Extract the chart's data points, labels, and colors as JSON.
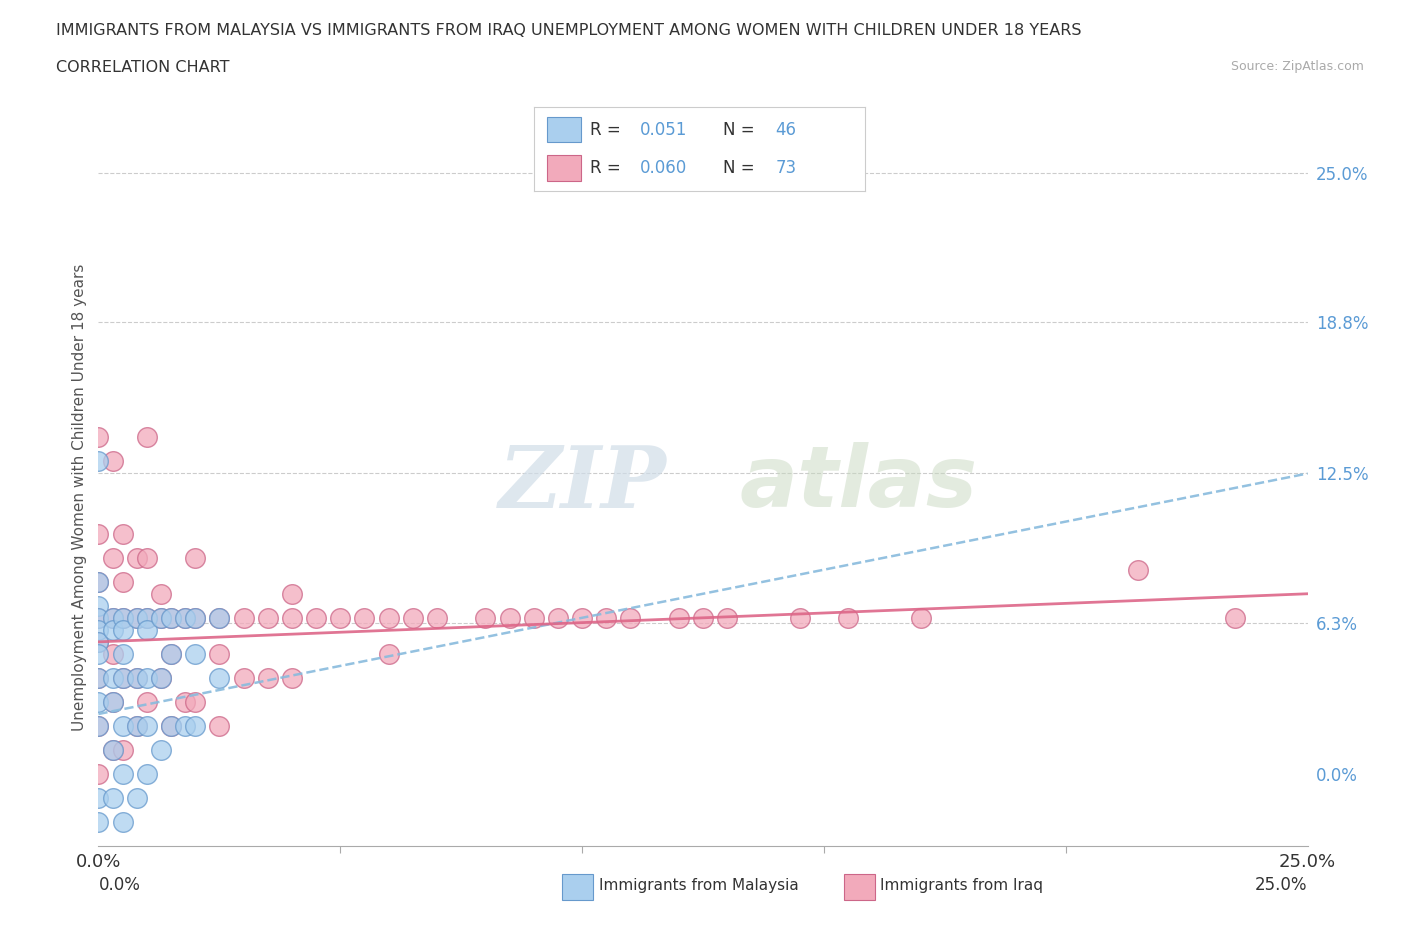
{
  "title_line1": "IMMIGRANTS FROM MALAYSIA VS IMMIGRANTS FROM IRAQ UNEMPLOYMENT AMONG WOMEN WITH CHILDREN UNDER 18 YEARS",
  "title_line2": "CORRELATION CHART",
  "source": "Source: ZipAtlas.com",
  "ylabel": "Unemployment Among Women with Children Under 18 years",
  "xlim": [
    0.0,
    0.25
  ],
  "ylim": [
    -0.03,
    0.26
  ],
  "xtick_vals": [
    0.0,
    0.25
  ],
  "xtick_labels": [
    "0.0%",
    "25.0%"
  ],
  "ytick_right_vals": [
    0.0,
    0.063,
    0.125,
    0.188,
    0.25
  ],
  "ytick_right_labels": [
    "0.0%",
    "6.3%",
    "12.5%",
    "18.8%",
    "25.0%"
  ],
  "grid_vals": [
    0.063,
    0.125,
    0.188,
    0.25
  ],
  "malaysia_color": "#aacfee",
  "malaysia_edge": "#6699cc",
  "iraq_color": "#f2aabb",
  "iraq_edge": "#cc6688",
  "trendline_malaysia_color": "#88bbdd",
  "trendline_iraq_color": "#dd6688",
  "legend_label_malaysia": "Immigrants from Malaysia",
  "legend_label_iraq": "Immigrants from Iraq",
  "watermark_zip": "ZIP",
  "watermark_atlas": "atlas",
  "malaysia_R": "0.051",
  "malaysia_N": "46",
  "iraq_R": "0.060",
  "iraq_N": "73",
  "malaysia_trendline": [
    0.025,
    0.125
  ],
  "iraq_trendline": [
    0.055,
    0.075
  ],
  "malaysia_scatter_x": [
    0.0,
    0.0,
    0.0,
    0.0,
    0.0,
    0.0,
    0.0,
    0.0,
    0.0,
    0.0,
    0.0,
    0.0,
    0.003,
    0.003,
    0.003,
    0.003,
    0.003,
    0.003,
    0.005,
    0.005,
    0.005,
    0.005,
    0.005,
    0.005,
    0.005,
    0.008,
    0.008,
    0.008,
    0.008,
    0.01,
    0.01,
    0.01,
    0.01,
    0.01,
    0.013,
    0.013,
    0.013,
    0.015,
    0.015,
    0.015,
    0.018,
    0.018,
    0.02,
    0.02,
    0.02,
    0.025,
    0.025
  ],
  "malaysia_scatter_y": [
    0.13,
    0.08,
    0.07,
    0.065,
    0.06,
    0.055,
    0.05,
    0.04,
    0.03,
    0.02,
    -0.01,
    -0.02,
    0.065,
    0.06,
    0.04,
    0.03,
    0.01,
    -0.01,
    0.065,
    0.06,
    0.05,
    0.04,
    0.02,
    0.0,
    -0.02,
    0.065,
    0.04,
    0.02,
    -0.01,
    0.065,
    0.06,
    0.04,
    0.02,
    0.0,
    0.065,
    0.04,
    0.01,
    0.065,
    0.05,
    0.02,
    0.065,
    0.02,
    0.065,
    0.05,
    0.02,
    0.065,
    0.04
  ],
  "iraq_scatter_x": [
    0.0,
    0.0,
    0.0,
    0.0,
    0.0,
    0.0,
    0.0,
    0.0,
    0.003,
    0.003,
    0.003,
    0.003,
    0.003,
    0.003,
    0.005,
    0.005,
    0.005,
    0.005,
    0.005,
    0.008,
    0.008,
    0.008,
    0.008,
    0.01,
    0.01,
    0.01,
    0.01,
    0.013,
    0.013,
    0.013,
    0.015,
    0.015,
    0.015,
    0.018,
    0.018,
    0.02,
    0.02,
    0.02,
    0.025,
    0.025,
    0.025,
    0.03,
    0.03,
    0.035,
    0.035,
    0.04,
    0.04,
    0.04,
    0.045,
    0.05,
    0.055,
    0.06,
    0.06,
    0.065,
    0.07,
    0.08,
    0.085,
    0.09,
    0.095,
    0.1,
    0.105,
    0.11,
    0.12,
    0.125,
    0.13,
    0.145,
    0.155,
    0.17,
    0.215,
    0.235
  ],
  "iraq_scatter_y": [
    0.14,
    0.1,
    0.08,
    0.065,
    0.055,
    0.04,
    0.02,
    0.0,
    0.13,
    0.09,
    0.065,
    0.05,
    0.03,
    0.01,
    0.1,
    0.08,
    0.065,
    0.04,
    0.01,
    0.09,
    0.065,
    0.04,
    0.02,
    0.14,
    0.09,
    0.065,
    0.03,
    0.075,
    0.065,
    0.04,
    0.065,
    0.05,
    0.02,
    0.065,
    0.03,
    0.09,
    0.065,
    0.03,
    0.065,
    0.05,
    0.02,
    0.065,
    0.04,
    0.065,
    0.04,
    0.075,
    0.065,
    0.04,
    0.065,
    0.065,
    0.065,
    0.065,
    0.05,
    0.065,
    0.065,
    0.065,
    0.065,
    0.065,
    0.065,
    0.065,
    0.065,
    0.065,
    0.065,
    0.065,
    0.065,
    0.065,
    0.065,
    0.065,
    0.085,
    0.065
  ]
}
